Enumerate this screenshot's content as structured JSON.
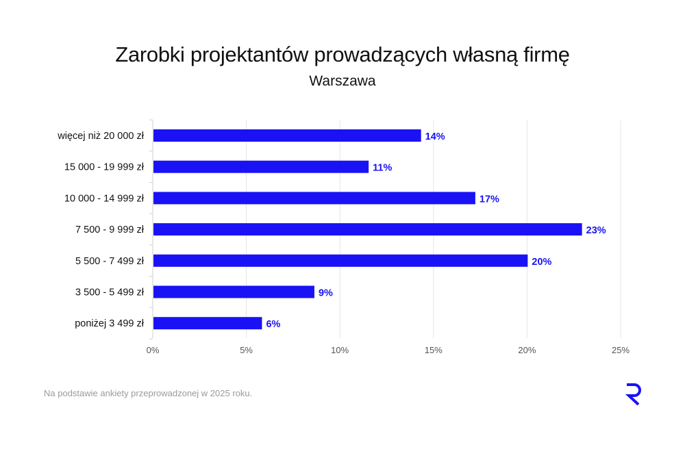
{
  "chart_data": {
    "type": "bar",
    "orientation": "horizontal",
    "title": "Zarobki projektantów prowadzących własną firmę",
    "subtitle": "Warszawa",
    "categories": [
      "więcej niż 20 000 zł",
      "15 000 - 19 999 zł",
      "10 000 - 14 999 zł",
      "7 500 - 9 999 zł",
      "5 500 - 7 499 zł",
      "3 500 - 5 499 zł",
      "poniżej 3 499 zł"
    ],
    "values": [
      14.3,
      11.5,
      17.2,
      22.9,
      20.0,
      8.6,
      5.8
    ],
    "data_labels": [
      "14%",
      "11%",
      "17%",
      "23%",
      "20%",
      "9%",
      "6%"
    ],
    "xlim": [
      0,
      25
    ],
    "x_ticks": [
      "0%",
      "5%",
      "10%",
      "15%",
      "20%",
      "25%"
    ],
    "grid": "vertical",
    "bar_color": "#1a12f5",
    "label_color": "#1a12f5"
  },
  "footnote": "Na podstawie ankiety przeprowadzonej w 2025 roku.",
  "logo": {
    "letter": "R",
    "color": "#1a12f5"
  }
}
